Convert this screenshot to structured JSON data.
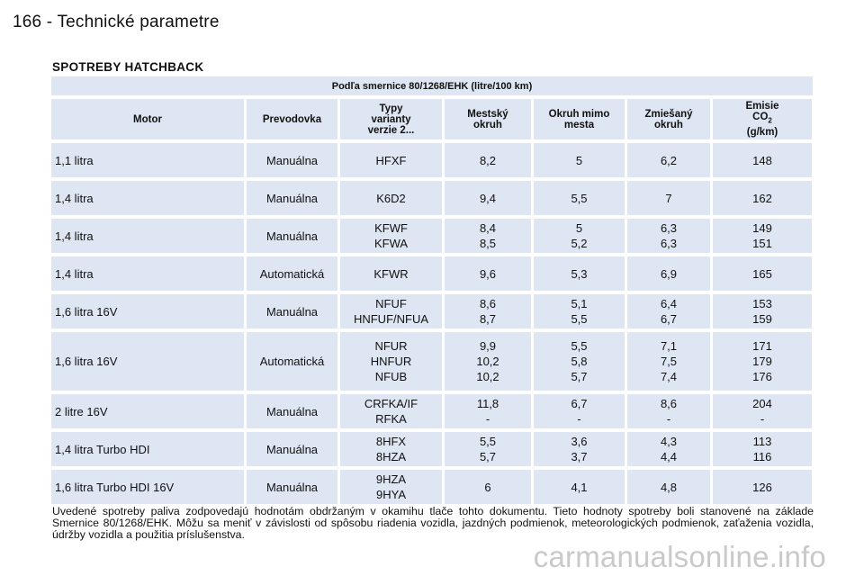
{
  "header": {
    "page_title": "166 - Technické parametre"
  },
  "section": {
    "title": "SPOTREBY HATCHBACK"
  },
  "table": {
    "subtitle": "Podľa smernice 80/1268/EHK (litre/100 km)",
    "columns": {
      "motor": "Motor",
      "prevodovka": "Prevodovka",
      "typy": [
        "Typy",
        "varianty",
        "verzie 2..."
      ],
      "mestsky": [
        "Mestský",
        "okruh"
      ],
      "mimo": [
        "Okruh mimo",
        "mesta"
      ],
      "zmiesany": [
        "Zmiešaný",
        "okruh"
      ],
      "emisie": [
        "Emisie",
        "CO",
        "2",
        "(g/km)"
      ]
    },
    "rows": [
      {
        "motor": "1,1 litra",
        "prevodovka": "Manuálna",
        "typ": [
          "HFXF"
        ],
        "mestsky": [
          "8,2"
        ],
        "mimo": [
          "5"
        ],
        "zmiesany": [
          "6,2"
        ],
        "emisie": [
          "148"
        ]
      },
      {
        "motor": "1,4 litra",
        "prevodovka": "Manuálna",
        "typ": [
          "K6D2"
        ],
        "mestsky": [
          "9,4"
        ],
        "mimo": [
          "5,5"
        ],
        "zmiesany": [
          "7"
        ],
        "emisie": [
          "162"
        ]
      },
      {
        "motor": "1,4 litra",
        "prevodovka": "Manuálna",
        "typ": [
          "KFWF",
          "KFWA"
        ],
        "mestsky": [
          "8,4",
          "8,5"
        ],
        "mimo": [
          "5",
          "5,2"
        ],
        "zmiesany": [
          "6,3",
          "6,3"
        ],
        "emisie": [
          "149",
          "151"
        ]
      },
      {
        "motor": "1,4 litra",
        "prevodovka": "Automatická",
        "typ": [
          "KFWR"
        ],
        "mestsky": [
          "9,6"
        ],
        "mimo": [
          "5,3"
        ],
        "zmiesany": [
          "6,9"
        ],
        "emisie": [
          "165"
        ]
      },
      {
        "motor": "1,6 litra 16V",
        "prevodovka": "Manuálna",
        "typ": [
          "NFUF",
          "HNFUF/NFUA"
        ],
        "mestsky": [
          "8,6",
          "8,7"
        ],
        "mimo": [
          "5,1",
          "5,5"
        ],
        "zmiesany": [
          "6,4",
          "6,7"
        ],
        "emisie": [
          "153",
          "159"
        ]
      },
      {
        "motor": "1,6 litra 16V",
        "prevodovka": "Automatická",
        "typ": [
          "NFUR",
          "HNFUR",
          "NFUB"
        ],
        "mestsky": [
          "9,9",
          "10,2",
          "10,2"
        ],
        "mimo": [
          "5,5",
          "5,8",
          "5,7"
        ],
        "zmiesany": [
          "7,1",
          "7,5",
          "7,4"
        ],
        "emisie": [
          "171",
          "179",
          "176"
        ]
      },
      {
        "motor": "2 litre 16V",
        "prevodovka": "Manuálna",
        "typ": [
          "CRFKA/IF",
          "RFKA"
        ],
        "mestsky": [
          "11,8",
          "-"
        ],
        "mimo": [
          "6,7",
          "-"
        ],
        "zmiesany": [
          "8,6",
          "-"
        ],
        "emisie": [
          "204",
          "-"
        ]
      },
      {
        "motor": "1,4 litra Turbo HDI",
        "prevodovka": "Manuálna",
        "typ": [
          "8HFX",
          "8HZA"
        ],
        "mestsky": [
          "5,5",
          "5,7"
        ],
        "mimo": [
          "3,6",
          "3,7"
        ],
        "zmiesany": [
          "4,3",
          "4,4"
        ],
        "emisie": [
          "113",
          "116"
        ]
      },
      {
        "motor": "1,6 litra Turbo HDI 16V",
        "prevodovka": "Manuálna",
        "typ": [
          "9HZA",
          "9HYA"
        ],
        "mestsky": [
          "6"
        ],
        "mimo": [
          "4,1"
        ],
        "zmiesany": [
          "4,8"
        ],
        "emisie": [
          "126"
        ]
      }
    ]
  },
  "footnote": "Uvedené spotreby paliva zodpovedajú hodnotám obdržaným v okamihu tlače tohto dokumentu. Tieto hodnoty spotreby boli stanovené na základe Smernice 80/1268/EHK. Môžu sa meniť v závislosti od spôsobu riadenia vozidla, jazdných podmienok, meteorologických podmienok, zaťaženia vozidla, údržby vozidla a použitia príslušenstva.",
  "watermark": "carmanualsonline.info"
}
